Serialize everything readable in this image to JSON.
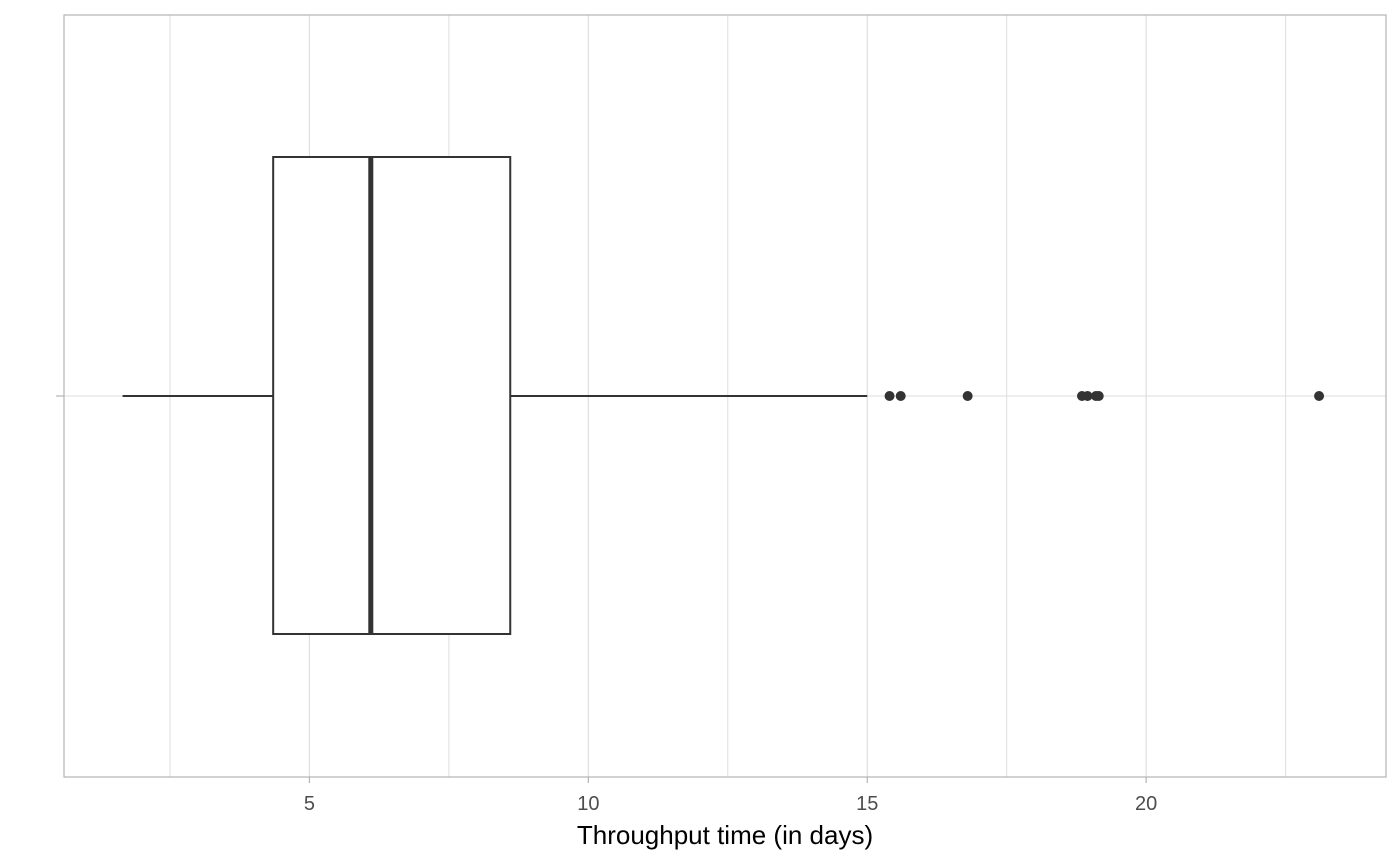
{
  "chart_data": {
    "type": "boxplot",
    "orientation": "horizontal",
    "xlabel": "Throughput time (in days)",
    "xlim": [
      0.6,
      24.3
    ],
    "x_ticks": [
      5,
      10,
      15,
      20
    ],
    "x_tick_labels": [
      "5",
      "10",
      "15",
      "20"
    ],
    "minor_x_ticks": [
      2.5,
      7.5,
      12.5,
      17.5,
      22.5
    ],
    "grid": true,
    "box": {
      "whisker_low": 1.65,
      "q1": 4.35,
      "median": 6.1,
      "q3": 8.6,
      "whisker_high": 15.0
    },
    "outliers": [
      15.4,
      15.6,
      16.8,
      18.85,
      18.95,
      19.1,
      19.15,
      23.1
    ],
    "colors": {
      "box_line": "#333333",
      "outlier": "#333333",
      "grid": "#dedede",
      "panel_border": "#b3b3b3"
    }
  }
}
